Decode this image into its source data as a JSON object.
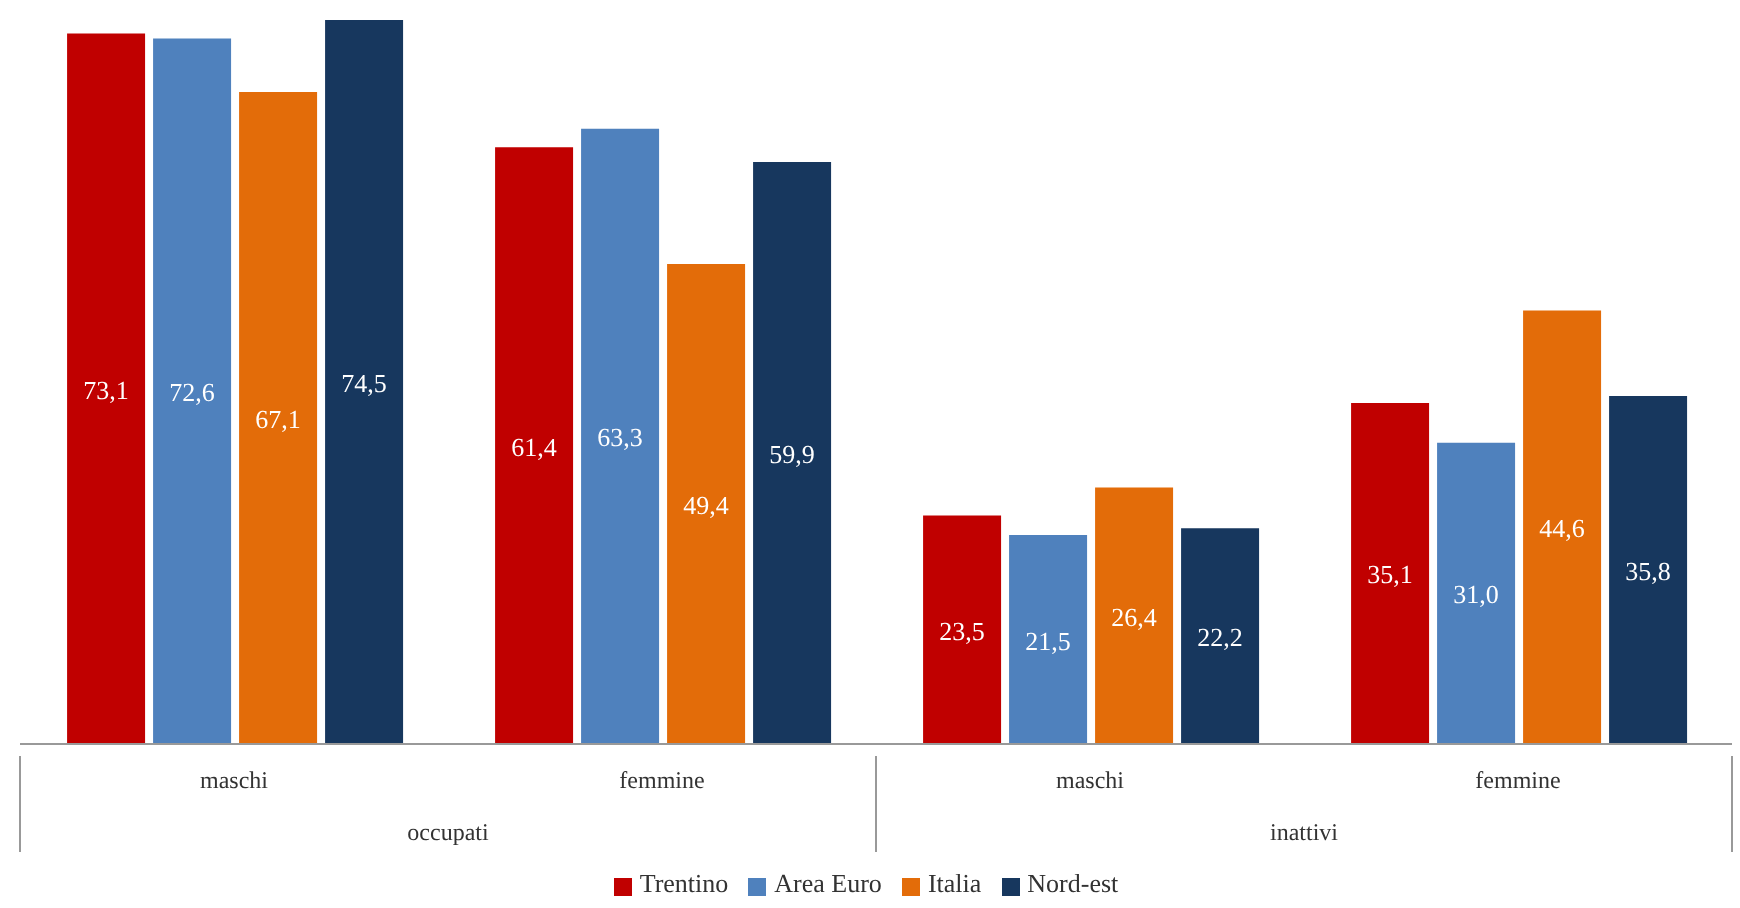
{
  "chart_data": {
    "type": "bar",
    "categories": [
      "maschi",
      "femmine",
      "maschi",
      "femmine"
    ],
    "annotations": [
      "occupati",
      "inattivi"
    ],
    "series": [
      {
        "name": "Trentino",
        "color": "#c00000",
        "values": [
          73.1,
          61.4,
          23.5,
          35.1
        ],
        "value_labels": [
          "73,1",
          "61,4",
          "23,5",
          "35,1"
        ]
      },
      {
        "name": "Area Euro",
        "color": "#4f81bd",
        "values": [
          72.6,
          63.3,
          21.5,
          31.0
        ],
        "value_labels": [
          "72,6",
          "63,3",
          "21,5",
          "31,0"
        ]
      },
      {
        "name": "Italia",
        "color": "#e36c09",
        "values": [
          67.1,
          49.4,
          26.4,
          44.6
        ],
        "value_labels": [
          "67,1",
          "49,4",
          "26,4",
          "44,6"
        ]
      },
      {
        "name": "Nord-est",
        "color": "#17375e",
        "values": [
          74.5,
          59.9,
          22.2,
          35.8
        ],
        "value_labels": [
          "74,5",
          "59,9",
          "22,2",
          "35,8"
        ]
      }
    ],
    "legend": "bottom",
    "tick_labels": "x"
  }
}
